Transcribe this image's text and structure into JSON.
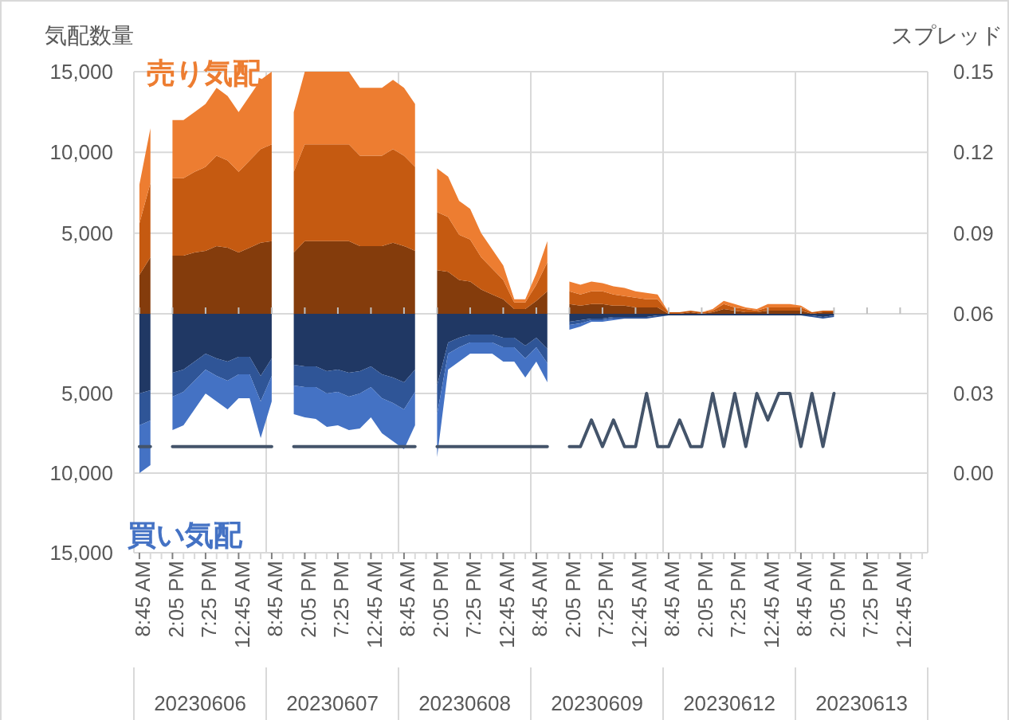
{
  "chart_data": [
    {
      "type": "area",
      "stacked": true,
      "grid": true,
      "tick_labels": "y",
      "ylabel": "気配数量",
      "y2label": "スプレッド",
      "annotations": [
        "売り気配"
      ],
      "categories": [
        null,
        null,
        null,
        null,
        null,
        null,
        null,
        null,
        null,
        null,
        null,
        null,
        null,
        null,
        null,
        null,
        null,
        null,
        null,
        null,
        null,
        null,
        null,
        null,
        null,
        null,
        null,
        null,
        null,
        null,
        null,
        null,
        null,
        null,
        null,
        null,
        null,
        null,
        null,
        null,
        null,
        null,
        null,
        null,
        null,
        null,
        null,
        null,
        null,
        null,
        null,
        null,
        null,
        null,
        null,
        null,
        null,
        null,
        null,
        null,
        null,
        null,
        null,
        null,
        null,
        null,
        null,
        null,
        null,
        null,
        null,
        null
      ],
      "ylim": [
        0,
        15000
      ],
      "yticks": [
        {
          "value": 0,
          "label": null
        },
        {
          "value": 5000,
          "label": "5,000"
        },
        {
          "value": 10000,
          "label": "10,000"
        },
        {
          "value": 15000,
          "label": "15,000"
        }
      ],
      "y2lim": [
        0.06,
        0.15
      ],
      "y2ticks": [
        {
          "value": 0.06,
          "label": "0.06"
        },
        {
          "value": 0.09,
          "label": "0.09"
        },
        {
          "value": 0.12,
          "label": "0.12"
        },
        {
          "value": 0.15,
          "label": "0.15"
        }
      ],
      "series": [
        {
          "color": "#843c0c",
          "values": [
            2400,
            3500,
            null,
            3600,
            3600,
            3800,
            3900,
            4200,
            4100,
            3800,
            4100,
            4400,
            4500,
            null,
            3800,
            4500,
            4500,
            4500,
            4500,
            4500,
            4200,
            4200,
            4200,
            4400,
            4200,
            3900,
            null,
            2700,
            2600,
            2100,
            2000,
            1500,
            1200,
            900,
            300,
            300,
            800,
            1400,
            null,
            600,
            500,
            600,
            600,
            500,
            500,
            400,
            400,
            400,
            0,
            0,
            100,
            0,
            100,
            300,
            200,
            100,
            100,
            200,
            200,
            200,
            200,
            0,
            100,
            100,
            null,
            null,
            null,
            null,
            null,
            null,
            null,
            null
          ]
        },
        {
          "color": "#c55a11",
          "values": [
            3200,
            4600,
            null,
            4800,
            4800,
            5000,
            5200,
            5600,
            5400,
            5000,
            5400,
            5800,
            6000,
            null,
            5000,
            6000,
            6000,
            6000,
            6000,
            6000,
            5600,
            5600,
            5600,
            5800,
            5600,
            5200,
            null,
            3600,
            3400,
            2800,
            2600,
            2000,
            1600,
            1200,
            400,
            400,
            1000,
            1800,
            null,
            800,
            700,
            800,
            800,
            700,
            600,
            600,
            500,
            500,
            100,
            100,
            100,
            100,
            100,
            300,
            200,
            200,
            100,
            200,
            200,
            200,
            200,
            100,
            100,
            100,
            null,
            null,
            null,
            null,
            null,
            null,
            null,
            null
          ]
        },
        {
          "color": "#ed7d31",
          "values": [
            2400,
            3400,
            null,
            3600,
            3600,
            3700,
            3900,
            4200,
            4000,
            3700,
            4000,
            4300,
            4500,
            null,
            3700,
            4500,
            4500,
            4500,
            4500,
            4500,
            4200,
            4200,
            4200,
            4300,
            4200,
            3900,
            null,
            2700,
            2500,
            2100,
            1900,
            1500,
            1200,
            900,
            200,
            200,
            700,
            1300,
            null,
            600,
            600,
            600,
            500,
            500,
            500,
            400,
            400,
            300,
            0,
            0,
            0,
            0,
            100,
            200,
            200,
            100,
            100,
            200,
            200,
            200,
            100,
            0,
            0,
            0,
            null,
            null,
            null,
            null,
            null,
            null,
            null,
            null
          ]
        }
      ]
    },
    {
      "type": "area",
      "stacked": true,
      "grid": true,
      "annotations": [
        "買い気配",
        "20230606",
        "20230607",
        "20230608",
        "20230609",
        "20230612",
        "20230613"
      ],
      "categories": [
        "8:45 AM",
        null,
        null,
        "2:05 PM",
        null,
        null,
        "7:25 PM",
        null,
        null,
        "12:45 AM",
        null,
        null,
        "8:45 AM",
        null,
        null,
        "2:05 PM",
        null,
        null,
        "7:25 PM",
        null,
        null,
        "12:45 AM",
        null,
        null,
        "8:45 AM",
        null,
        null,
        "2:05 PM",
        null,
        null,
        "7:25 PM",
        null,
        null,
        "12:45 AM",
        null,
        null,
        "8:45 AM",
        null,
        null,
        "2:05 PM",
        null,
        null,
        "7:25 PM",
        null,
        null,
        "12:45 AM",
        null,
        null,
        "8:45 AM",
        null,
        null,
        "2:05 PM",
        null,
        null,
        "7:25 PM",
        null,
        null,
        "12:45 AM",
        null,
        null,
        "8:45 AM",
        null,
        null,
        "2:05 PM",
        null,
        null,
        "7:25 PM",
        null,
        null,
        "12:45 AM",
        null,
        null
      ],
      "ylim": [
        15000,
        0
      ],
      "yticks": [
        {
          "value": 5000,
          "label": "5,000"
        },
        {
          "value": 10000,
          "label": "10,000"
        },
        {
          "value": 15000,
          "label": "15,000"
        }
      ],
      "y2lim": [
        -0.03,
        0.06
      ],
      "y2ticks": [
        {
          "value": 0,
          "label": "0.00"
        },
        {
          "value": 0.03,
          "label": "0.03"
        }
      ],
      "series": [
        {
          "color": "#203864",
          "values": [
            5000,
            4800,
            null,
            3700,
            3500,
            3000,
            2500,
            2800,
            3000,
            2700,
            2700,
            3900,
            2800,
            null,
            3200,
            3300,
            3300,
            3600,
            3500,
            3700,
            3600,
            3300,
            3800,
            4000,
            4300,
            3500,
            null,
            4500,
            1800,
            1500,
            1300,
            1300,
            1300,
            1500,
            1500,
            2000,
            1500,
            2200,
            null,
            500,
            400,
            300,
            300,
            200,
            200,
            200,
            200,
            100,
            100,
            100,
            100,
            100,
            100,
            100,
            100,
            100,
            100,
            100,
            100,
            100,
            100,
            100,
            200,
            100,
            null,
            null,
            null,
            null,
            null,
            null,
            null,
            null
          ]
        },
        {
          "color": "#2f5597",
          "values": [
            2000,
            1900,
            null,
            1500,
            1400,
            1200,
            1000,
            1100,
            1200,
            1100,
            1100,
            1600,
            1100,
            null,
            1300,
            1300,
            1300,
            1400,
            1400,
            1500,
            1400,
            1300,
            1500,
            1600,
            1700,
            1400,
            null,
            1800,
            700,
            600,
            500,
            500,
            500,
            600,
            600,
            800,
            600,
            900,
            null,
            200,
            200,
            100,
            100,
            100,
            100,
            100,
            100,
            100,
            0,
            0,
            0,
            0,
            0,
            0,
            0,
            0,
            0,
            0,
            0,
            0,
            0,
            100,
            100,
            100,
            null,
            null,
            null,
            null,
            null,
            null,
            null,
            null
          ]
        },
        {
          "color": "#4472c4",
          "values": [
            3000,
            2800,
            null,
            2100,
            2100,
            1800,
            1500,
            1600,
            1800,
            1500,
            1500,
            2300,
            1600,
            null,
            1800,
            1900,
            2000,
            2100,
            2100,
            2100,
            2200,
            1900,
            2200,
            2400,
            2500,
            2100,
            null,
            2700,
            1000,
            900,
            700,
            700,
            700,
            900,
            900,
            1200,
            900,
            1200,
            null,
            300,
            200,
            100,
            100,
            100,
            0,
            0,
            0,
            0,
            0,
            0,
            0,
            0,
            0,
            0,
            0,
            0,
            0,
            0,
            0,
            0,
            0,
            0,
            0,
            0,
            null,
            null,
            null,
            null,
            null,
            null,
            null,
            null
          ]
        },
        {
          "type": "line",
          "axis": "y2",
          "color": "#44546a",
          "values": [
            0.01,
            0.01,
            null,
            0.01,
            0.01,
            0.01,
            0.01,
            0.01,
            0.01,
            0.01,
            0.01,
            0.01,
            0.01,
            null,
            0.01,
            0.01,
            0.01,
            0.01,
            0.01,
            0.01,
            0.01,
            0.01,
            0.01,
            0.01,
            0.01,
            0.01,
            null,
            0.01,
            0.01,
            0.01,
            0.01,
            0.01,
            0.01,
            0.01,
            0.01,
            0.01,
            0.01,
            0.01,
            null,
            0.01,
            0.01,
            0.02,
            0.01,
            0.02,
            0.01,
            0.01,
            0.03,
            0.01,
            0.01,
            0.02,
            0.01,
            0.01,
            0.03,
            0.01,
            0.03,
            0.01,
            0.03,
            0.02,
            0.03,
            0.03,
            0.01,
            0.03,
            0.01,
            0.03,
            null,
            null,
            null,
            null,
            null,
            null,
            null,
            null
          ]
        }
      ]
    }
  ]
}
